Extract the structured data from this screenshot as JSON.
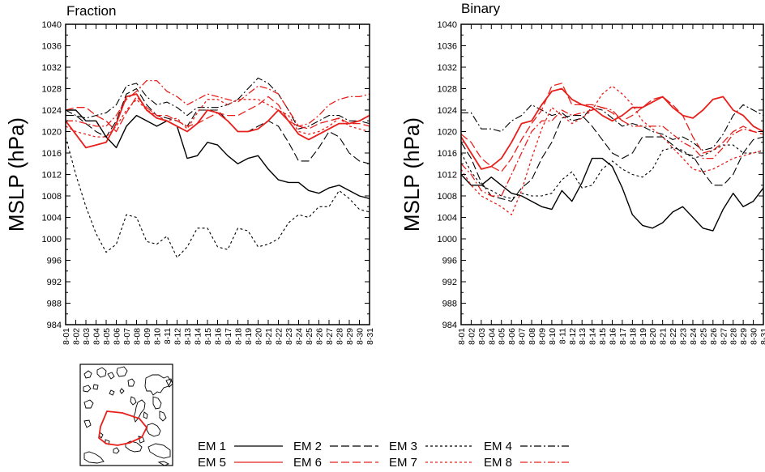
{
  "chart_data": [
    {
      "type": "line",
      "title": "Fraction",
      "xlabel": "",
      "ylabel": "MSLP (hPa)",
      "ylim": [
        984,
        1040
      ],
      "yticks": [
        984,
        988,
        992,
        996,
        1000,
        1004,
        1008,
        1012,
        1016,
        1020,
        1024,
        1028,
        1032,
        1036,
        1040
      ],
      "categories": [
        "8-01",
        "8-02",
        "8-03",
        "8-04",
        "8-05",
        "8-06",
        "8-07",
        "8-08",
        "8-09",
        "8-10",
        "8-11",
        "8-12",
        "8-13",
        "8-14",
        "8-15",
        "8-16",
        "8-17",
        "8-18",
        "8-19",
        "8-20",
        "8-21",
        "8-22",
        "8-23",
        "8-24",
        "8-25",
        "8-26",
        "8-27",
        "8-28",
        "8-29",
        "8-30",
        "8-31"
      ],
      "series": [
        {
          "name": "EM 1",
          "color": "#000000",
          "dash": "",
          "width": 1.4,
          "values": [
            1024,
            1024,
            1022,
            1022,
            1019,
            1017,
            1021,
            1023,
            1022,
            1021,
            1022,
            1021,
            1015,
            1015.5,
            1018,
            1017.5,
            1015.5,
            1014,
            1015,
            1015.5,
            1013,
            1011,
            1010.5,
            1010.5,
            1009,
            1008.5,
            1009.5,
            1010,
            1009,
            1008,
            1007.5
          ]
        },
        {
          "name": "EM 2",
          "color": "#000000",
          "dash": "10,4",
          "width": 1.1,
          "values": [
            1023,
            1023,
            1021.5,
            1020,
            1019,
            1022,
            1027,
            1028,
            1025,
            1023,
            1022.5,
            1022,
            1021,
            1024,
            1024,
            1024,
            1022,
            1020,
            1020,
            1021,
            1022,
            1021,
            1018,
            1014.5,
            1014.5,
            1017,
            1020,
            1019,
            1016,
            1014.5,
            1014
          ]
        },
        {
          "name": "EM 3",
          "color": "#000000",
          "dash": "3,3",
          "width": 1.1,
          "values": [
            1019,
            1012,
            1006,
            1001,
            997.5,
            999,
            1004.5,
            1004,
            999.5,
            999,
            1000.5,
            996.5,
            998.5,
            1002,
            1002,
            998.5,
            998,
            1002,
            1001.5,
            998.5,
            999,
            1000,
            1003,
            1004.5,
            1004,
            1006,
            1006,
            1009,
            1007.5,
            1005.5,
            1005
          ]
        },
        {
          "name": "EM 4",
          "color": "#000000",
          "dash": "9,3,2,3",
          "width": 1.1,
          "values": [
            1024,
            1023,
            1022.5,
            1023,
            1023.5,
            1025,
            1028.5,
            1029,
            1026.5,
            1025,
            1025.5,
            1024.5,
            1023,
            1024.5,
            1024.5,
            1024.5,
            1025,
            1026,
            1028,
            1030,
            1029,
            1027,
            1024,
            1020.5,
            1021,
            1022,
            1023,
            1023,
            1022,
            1022,
            1021.5
          ]
        },
        {
          "name": "EM 5",
          "color": "#e8201c",
          "dash": "",
          "width": 1.8,
          "values": [
            1022,
            1019.5,
            1017,
            1017.5,
            1018,
            1021.5,
            1026.5,
            1027,
            1024,
            1022.5,
            1022,
            1021,
            1020,
            1021.5,
            1024,
            1023.5,
            1022,
            1020,
            1020,
            1020.5,
            1022,
            1024,
            1022,
            1019.5,
            1018.5,
            1019.5,
            1020.5,
            1021.5,
            1021.5,
            1022,
            1023
          ]
        },
        {
          "name": "EM 6",
          "color": "#e8201c",
          "dash": "10,4",
          "width": 1.3,
          "values": [
            1024,
            1024.5,
            1024.5,
            1023,
            1022,
            1020,
            1023.5,
            1026.5,
            1024.5,
            1023,
            1023,
            1022,
            1021,
            1021.5,
            1022.5,
            1023.5,
            1023,
            1023,
            1024,
            1025,
            1026.5,
            1025,
            1022,
            1021,
            1020.5,
            1021.5,
            1022,
            1022.5,
            1021.5,
            1021.5,
            1021
          ]
        },
        {
          "name": "EM 7",
          "color": "#e8201c",
          "dash": "3,3",
          "width": 1.3,
          "values": [
            1021,
            1020,
            1019.5,
            1019,
            1019,
            1021,
            1024,
            1026,
            1024,
            1023,
            1022,
            1022.5,
            1020.5,
            1023.5,
            1026,
            1026,
            1025,
            1026,
            1026,
            1026,
            1025,
            1024,
            1023,
            1020,
            1019.5,
            1020,
            1021,
            1022.5,
            1021,
            1020.5,
            1020
          ]
        },
        {
          "name": "EM 8",
          "color": "#e8201c",
          "dash": "9,3,2,3",
          "width": 1.3,
          "values": [
            1022,
            1022,
            1021.5,
            1021,
            1021,
            1023,
            1026,
            1027.5,
            1029.5,
            1029.5,
            1027.5,
            1026.5,
            1025,
            1026,
            1027,
            1026.5,
            1026,
            1025.5,
            1027,
            1028.5,
            1028,
            1027,
            1024,
            1021,
            1021.5,
            1023,
            1025,
            1026,
            1026.5,
            1026.5,
            1027
          ]
        }
      ]
    },
    {
      "type": "line",
      "title": "Binary",
      "xlabel": "",
      "ylabel": "MSLP (hPa)",
      "ylim": [
        984,
        1040
      ],
      "yticks": [
        984,
        988,
        992,
        996,
        1000,
        1004,
        1008,
        1012,
        1016,
        1020,
        1024,
        1028,
        1032,
        1036,
        1040
      ],
      "categories": [
        "8-01",
        "8-02",
        "8-03",
        "8-04",
        "8-05",
        "8-06",
        "8-07",
        "8-08",
        "8-09",
        "8-10",
        "8-11",
        "8-12",
        "8-13",
        "8-14",
        "8-15",
        "8-16",
        "8-17",
        "8-18",
        "8-19",
        "8-20",
        "8-21",
        "8-22",
        "8-23",
        "8-24",
        "8-25",
        "8-26",
        "8-27",
        "8-28",
        "8-29",
        "8-30",
        "8-31"
      ],
      "series": [
        {
          "name": "EM 1",
          "color": "#000000",
          "dash": "",
          "width": 1.4,
          "values": [
            1012,
            1010,
            1010,
            1011.5,
            1010,
            1008.5,
            1008,
            1007,
            1006,
            1005.5,
            1009,
            1007,
            1010.5,
            1015,
            1015,
            1013.5,
            1009.5,
            1004.5,
            1002.5,
            1002,
            1003,
            1005,
            1006,
            1004,
            1002,
            1001.5,
            1005.5,
            1008.5,
            1006,
            1007,
            1009.5
          ]
        },
        {
          "name": "EM 2",
          "color": "#000000",
          "dash": "10,4",
          "width": 1.1,
          "values": [
            1018,
            1015,
            1010.5,
            1008,
            1007.5,
            1007,
            1009.5,
            1011,
            1015,
            1018,
            1022.5,
            1023,
            1023,
            1021,
            1018.5,
            1016,
            1015,
            1016,
            1019,
            1019,
            1019,
            1017.5,
            1016,
            1015.5,
            1012.5,
            1010,
            1010,
            1012,
            1016,
            1018.5,
            1019
          ]
        },
        {
          "name": "EM 3",
          "color": "#000000",
          "dash": "3,3",
          "width": 1.1,
          "values": [
            1016,
            1012.5,
            1010,
            1009,
            1008,
            1007.5,
            1008.5,
            1008,
            1008,
            1008.5,
            1011,
            1012.5,
            1009.5,
            1010,
            1013,
            1014.5,
            1013,
            1012,
            1011.5,
            1013,
            1016.5,
            1017,
            1016.5,
            1015,
            1015.5,
            1016.5,
            1017.5,
            1017.5,
            1016,
            1016,
            1016.5
          ]
        },
        {
          "name": "EM 4",
          "color": "#000000",
          "dash": "9,3,2,3",
          "width": 1.1,
          "values": [
            1023.5,
            1023.5,
            1020.5,
            1020.5,
            1020,
            1022,
            1023,
            1025,
            1024,
            1023,
            1023.5,
            1022,
            1022.5,
            1024.5,
            1024,
            1022.5,
            1021,
            1021.5,
            1021,
            1020,
            1019.5,
            1018.5,
            1019,
            1018,
            1016.5,
            1017,
            1019.5,
            1023,
            1025,
            1024,
            1023
          ]
        },
        {
          "name": "EM 5",
          "color": "#e8201c",
          "dash": "",
          "width": 1.8,
          "values": [
            1019,
            1016,
            1013,
            1013.5,
            1015,
            1018,
            1021.5,
            1022,
            1025,
            1027.5,
            1028,
            1026,
            1025,
            1024.5,
            1023,
            1022,
            1023,
            1024.5,
            1024.5,
            1025.5,
            1026.5,
            1024.5,
            1023,
            1022.5,
            1024,
            1026,
            1026.5,
            1024,
            1023,
            1021,
            1020
          ]
        },
        {
          "name": "EM 6",
          "color": "#e8201c",
          "dash": "10,4",
          "width": 1.3,
          "values": [
            1019.5,
            1018,
            1015,
            1013.5,
            1012.5,
            1015,
            1018.5,
            1021.5,
            1024,
            1028.5,
            1029,
            1025,
            1025,
            1025,
            1024.5,
            1023.5,
            1022,
            1023,
            1024.5,
            1026,
            1026.5,
            1025,
            1023,
            1019,
            1016,
            1016.5,
            1018,
            1020,
            1021,
            1020,
            1019.5
          ]
        },
        {
          "name": "EM 7",
          "color": "#e8201c",
          "dash": "3,3",
          "width": 1.3,
          "values": [
            1013,
            1010,
            1008,
            1007,
            1006,
            1004.5,
            1009,
            1015,
            1020.5,
            1024.5,
            1023,
            1021.5,
            1022.5,
            1024,
            1027,
            1028.5,
            1027,
            1025,
            1022,
            1020.5,
            1019,
            1017,
            1015,
            1013,
            1012.5,
            1013,
            1014,
            1015,
            1015.5,
            1016,
            1016.5
          ]
        },
        {
          "name": "EM 8",
          "color": "#e8201c",
          "dash": "9,3,2,3",
          "width": 1.3,
          "values": [
            1014,
            1012,
            1009,
            1008,
            1008,
            1012,
            1016,
            1020,
            1022,
            1022,
            1024,
            1023,
            1023.5,
            1024,
            1024.5,
            1024,
            1022,
            1021,
            1021,
            1021,
            1021,
            1019.5,
            1018,
            1017,
            1015,
            1015,
            1017,
            1019.5,
            1020.5,
            1020,
            1020
          ]
        }
      ]
    }
  ],
  "legend": {
    "items": [
      {
        "label": "EM 1",
        "color": "#000000",
        "dash": ""
      },
      {
        "label": "EM 2",
        "color": "#000000",
        "dash": "10,4"
      },
      {
        "label": "EM 3",
        "color": "#000000",
        "dash": "3,3"
      },
      {
        "label": "EM 4",
        "color": "#000000",
        "dash": "9,3,2,3"
      },
      {
        "label": "EM 5",
        "color": "#e8201c",
        "dash": ""
      },
      {
        "label": "EM 6",
        "color": "#e8201c",
        "dash": "10,4"
      },
      {
        "label": "EM 7",
        "color": "#e8201c",
        "dash": "3,3"
      },
      {
        "label": "EM 8",
        "color": "#e8201c",
        "dash": "9,3,2,3"
      }
    ]
  },
  "inset_map": {
    "description_color": "#e8201c"
  }
}
